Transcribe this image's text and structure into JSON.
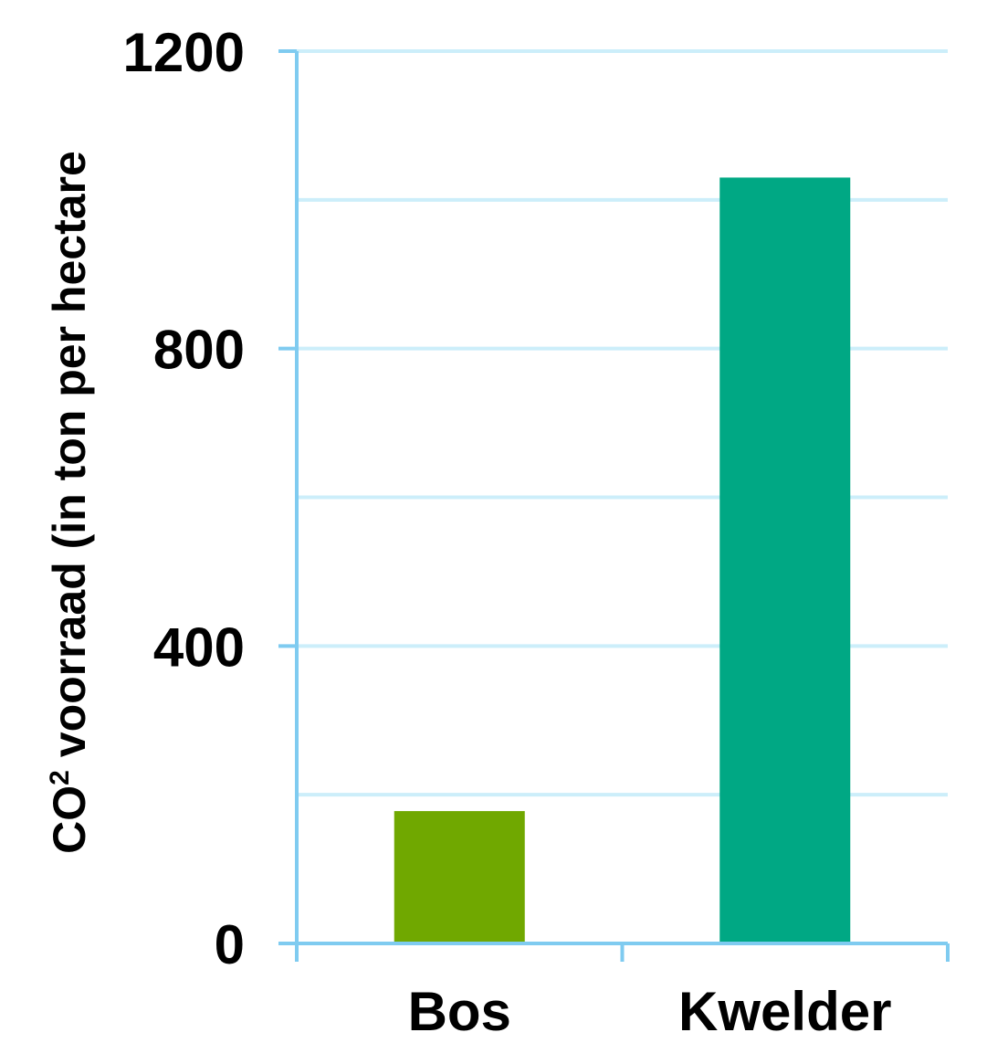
{
  "chart_data": {
    "type": "bar",
    "categories": [
      "Bos",
      "Kwelder"
    ],
    "values": [
      178,
      1030
    ],
    "ylabel_prefix": "CO",
    "ylabel_sup": "2",
    "ylabel_suffix": " voorraad (in ton per hectare",
    "ylim": [
      0,
      1200
    ],
    "yticks": [
      0,
      400,
      800,
      1200
    ],
    "ytick_labels": [
      "0",
      "400",
      "800",
      "1200"
    ],
    "minor_gridlines": [
      200,
      600,
      1000
    ],
    "grid": true,
    "legend": "none",
    "colors": {
      "bars": [
        "#70a800",
        "#00a884"
      ],
      "axis": "#7fcbf0",
      "grid": "#cceefa"
    }
  }
}
